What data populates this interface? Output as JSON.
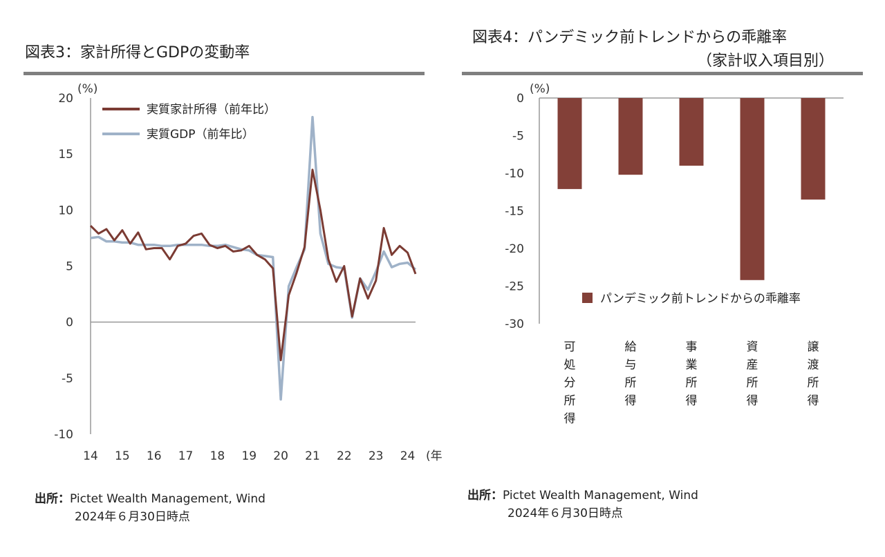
{
  "left": {
    "title": "図表3：家計所得とGDPの変動率",
    "source_label": "出所：",
    "source_text": "Pictet Wealth Management, Wind",
    "as_of": "2024年６月30日時点"
  },
  "right": {
    "title_line1": "図表4：パンデミック前トレンドからの乖離率",
    "title_line2": "（家計収入項目別）",
    "source_label": "出所：",
    "source_text": "Pictet Wealth Management, Wind",
    "as_of": "2024年６月30日時点"
  },
  "colors": {
    "income": "#7b3b33",
    "gdp": "#9fb2c8",
    "bar": "#834038",
    "axis": "#999999",
    "rule": "#7f7f7f"
  },
  "chart_data": [
    {
      "type": "line",
      "ylabel": "(%)",
      "xlabel": "(年)",
      "ylim": [
        -10,
        20
      ],
      "yticks": [
        20,
        15,
        10,
        5,
        0,
        -5,
        -10
      ],
      "xlim": [
        14,
        24.25
      ],
      "xticks": [
        "14",
        "15",
        "16",
        "17",
        "18",
        "19",
        "20",
        "21",
        "22",
        "23",
        "24"
      ],
      "grid": false,
      "legend_position": "top",
      "series": [
        {
          "name": "実質家計所得（前年比）",
          "color": "#7b3b33",
          "x": [
            14,
            14.25,
            14.5,
            14.75,
            15,
            15.25,
            15.5,
            15.75,
            16,
            16.25,
            16.5,
            16.75,
            17,
            17.25,
            17.5,
            17.75,
            18,
            18.25,
            18.5,
            18.75,
            19,
            19.25,
            19.5,
            19.75,
            20,
            20.25,
            20.5,
            20.75,
            21,
            21.25,
            21.5,
            21.75,
            22,
            22.25,
            22.5,
            22.75,
            23,
            23.25,
            23.5,
            23.75,
            24,
            24.25
          ],
          "values": [
            8.6,
            7.9,
            8.3,
            7.3,
            8.2,
            7.0,
            8.0,
            6.5,
            6.6,
            6.6,
            5.6,
            6.8,
            7.0,
            7.7,
            7.9,
            6.9,
            6.6,
            6.8,
            6.3,
            6.4,
            6.8,
            6.0,
            5.6,
            4.8,
            -3.4,
            2.4,
            4.4,
            6.7,
            13.6,
            10.0,
            5.6,
            3.6,
            5.0,
            0.5,
            3.9,
            2.1,
            3.7,
            8.4,
            6.0,
            6.8,
            6.2,
            4.3
          ]
        },
        {
          "name": "実質GDP（前年比）",
          "color": "#9fb2c8",
          "x": [
            14,
            14.25,
            14.5,
            14.75,
            15,
            15.25,
            15.5,
            15.75,
            16,
            16.25,
            16.5,
            16.75,
            17,
            17.25,
            17.5,
            17.75,
            18,
            18.25,
            18.5,
            18.75,
            19,
            19.25,
            19.5,
            19.75,
            20,
            20.25,
            20.5,
            20.75,
            21,
            21.25,
            21.5,
            21.75,
            22,
            22.25,
            22.5,
            22.75,
            23,
            23.25,
            23.5,
            23.75,
            24,
            24.25
          ],
          "values": [
            7.5,
            7.6,
            7.2,
            7.2,
            7.1,
            7.1,
            6.9,
            6.9,
            6.9,
            6.8,
            6.8,
            6.9,
            6.9,
            6.9,
            6.9,
            6.8,
            6.8,
            6.9,
            6.7,
            6.5,
            6.4,
            6.0,
            5.9,
            5.8,
            -6.9,
            3.2,
            4.9,
            6.5,
            18.3,
            7.9,
            5.2,
            4.9,
            4.8,
            0.4,
            3.9,
            2.9,
            4.5,
            6.3,
            4.9,
            5.2,
            5.3,
            4.7
          ]
        }
      ]
    },
    {
      "type": "bar",
      "ylabel": "(%)",
      "ylim": [
        -30,
        0
      ],
      "yticks": [
        0,
        -5,
        -10,
        -15,
        -20,
        -25,
        -30
      ],
      "grid": false,
      "legend_position": "bottom-right",
      "categories": [
        "可処分所得",
        "給与所得",
        "事業所得",
        "資産所得",
        "譲渡所得"
      ],
      "series": [
        {
          "name": "パンデミック前トレンドからの乖離率",
          "color": "#834038",
          "values": [
            -12.1,
            -10.2,
            -9.0,
            -24.2,
            -13.5
          ]
        }
      ]
    }
  ]
}
